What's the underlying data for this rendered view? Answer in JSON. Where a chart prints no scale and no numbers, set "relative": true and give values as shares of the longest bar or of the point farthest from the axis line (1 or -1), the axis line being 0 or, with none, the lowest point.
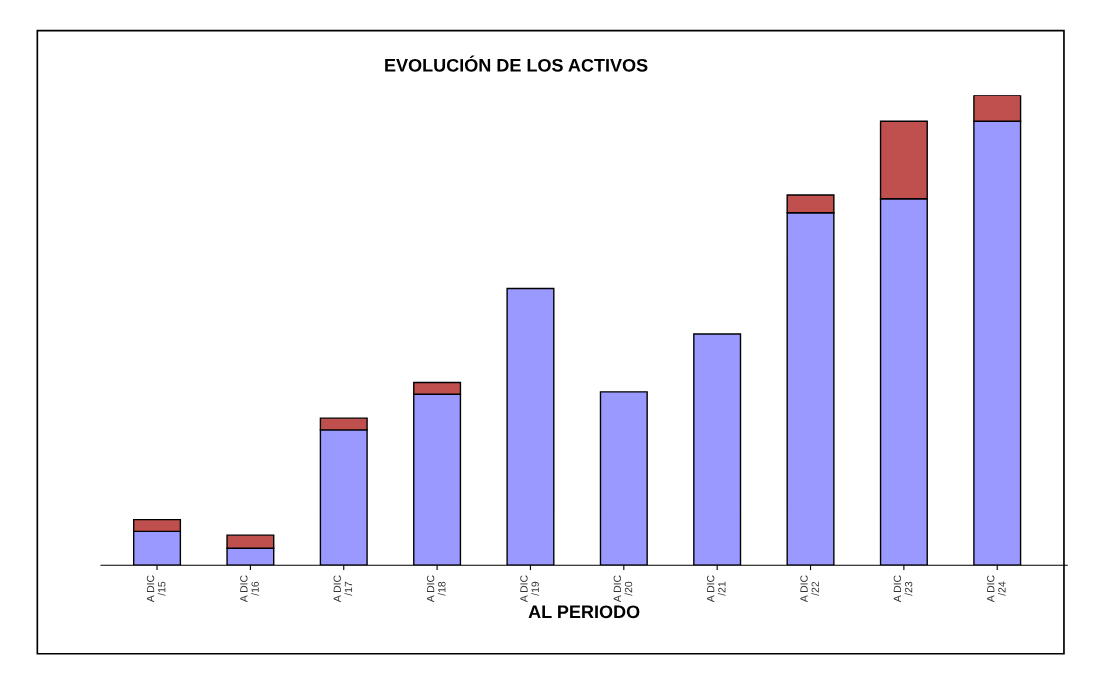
{
  "chart_data": {
    "type": "bar",
    "title": "EVOLUCIÓN DE LOS ACTIVOS",
    "xlabel": "AL PERIODO",
    "relative": true,
    "stacked": true,
    "legend": false,
    "grid": false,
    "categories": [
      "A DIC\n/15",
      "A DIC\n/16",
      "A DIC\n/17",
      "A DIC\n/18",
      "A DIC\n/19",
      "A DIC\n/20",
      "A DIC\n/21",
      "A DIC\n/22",
      "A DIC\n/23",
      "A DIC\n/24"
    ],
    "series": [
      {
        "color": "#9999ff",
        "values": [
          0.072,
          0.036,
          0.288,
          0.364,
          0.589,
          0.369,
          0.492,
          0.75,
          0.78,
          0.945
        ]
      },
      {
        "color": "#c0504d",
        "values": [
          0.025,
          0.028,
          0.025,
          0.025,
          null,
          null,
          null,
          0.038,
          0.165,
          0.055
        ]
      }
    ]
  }
}
